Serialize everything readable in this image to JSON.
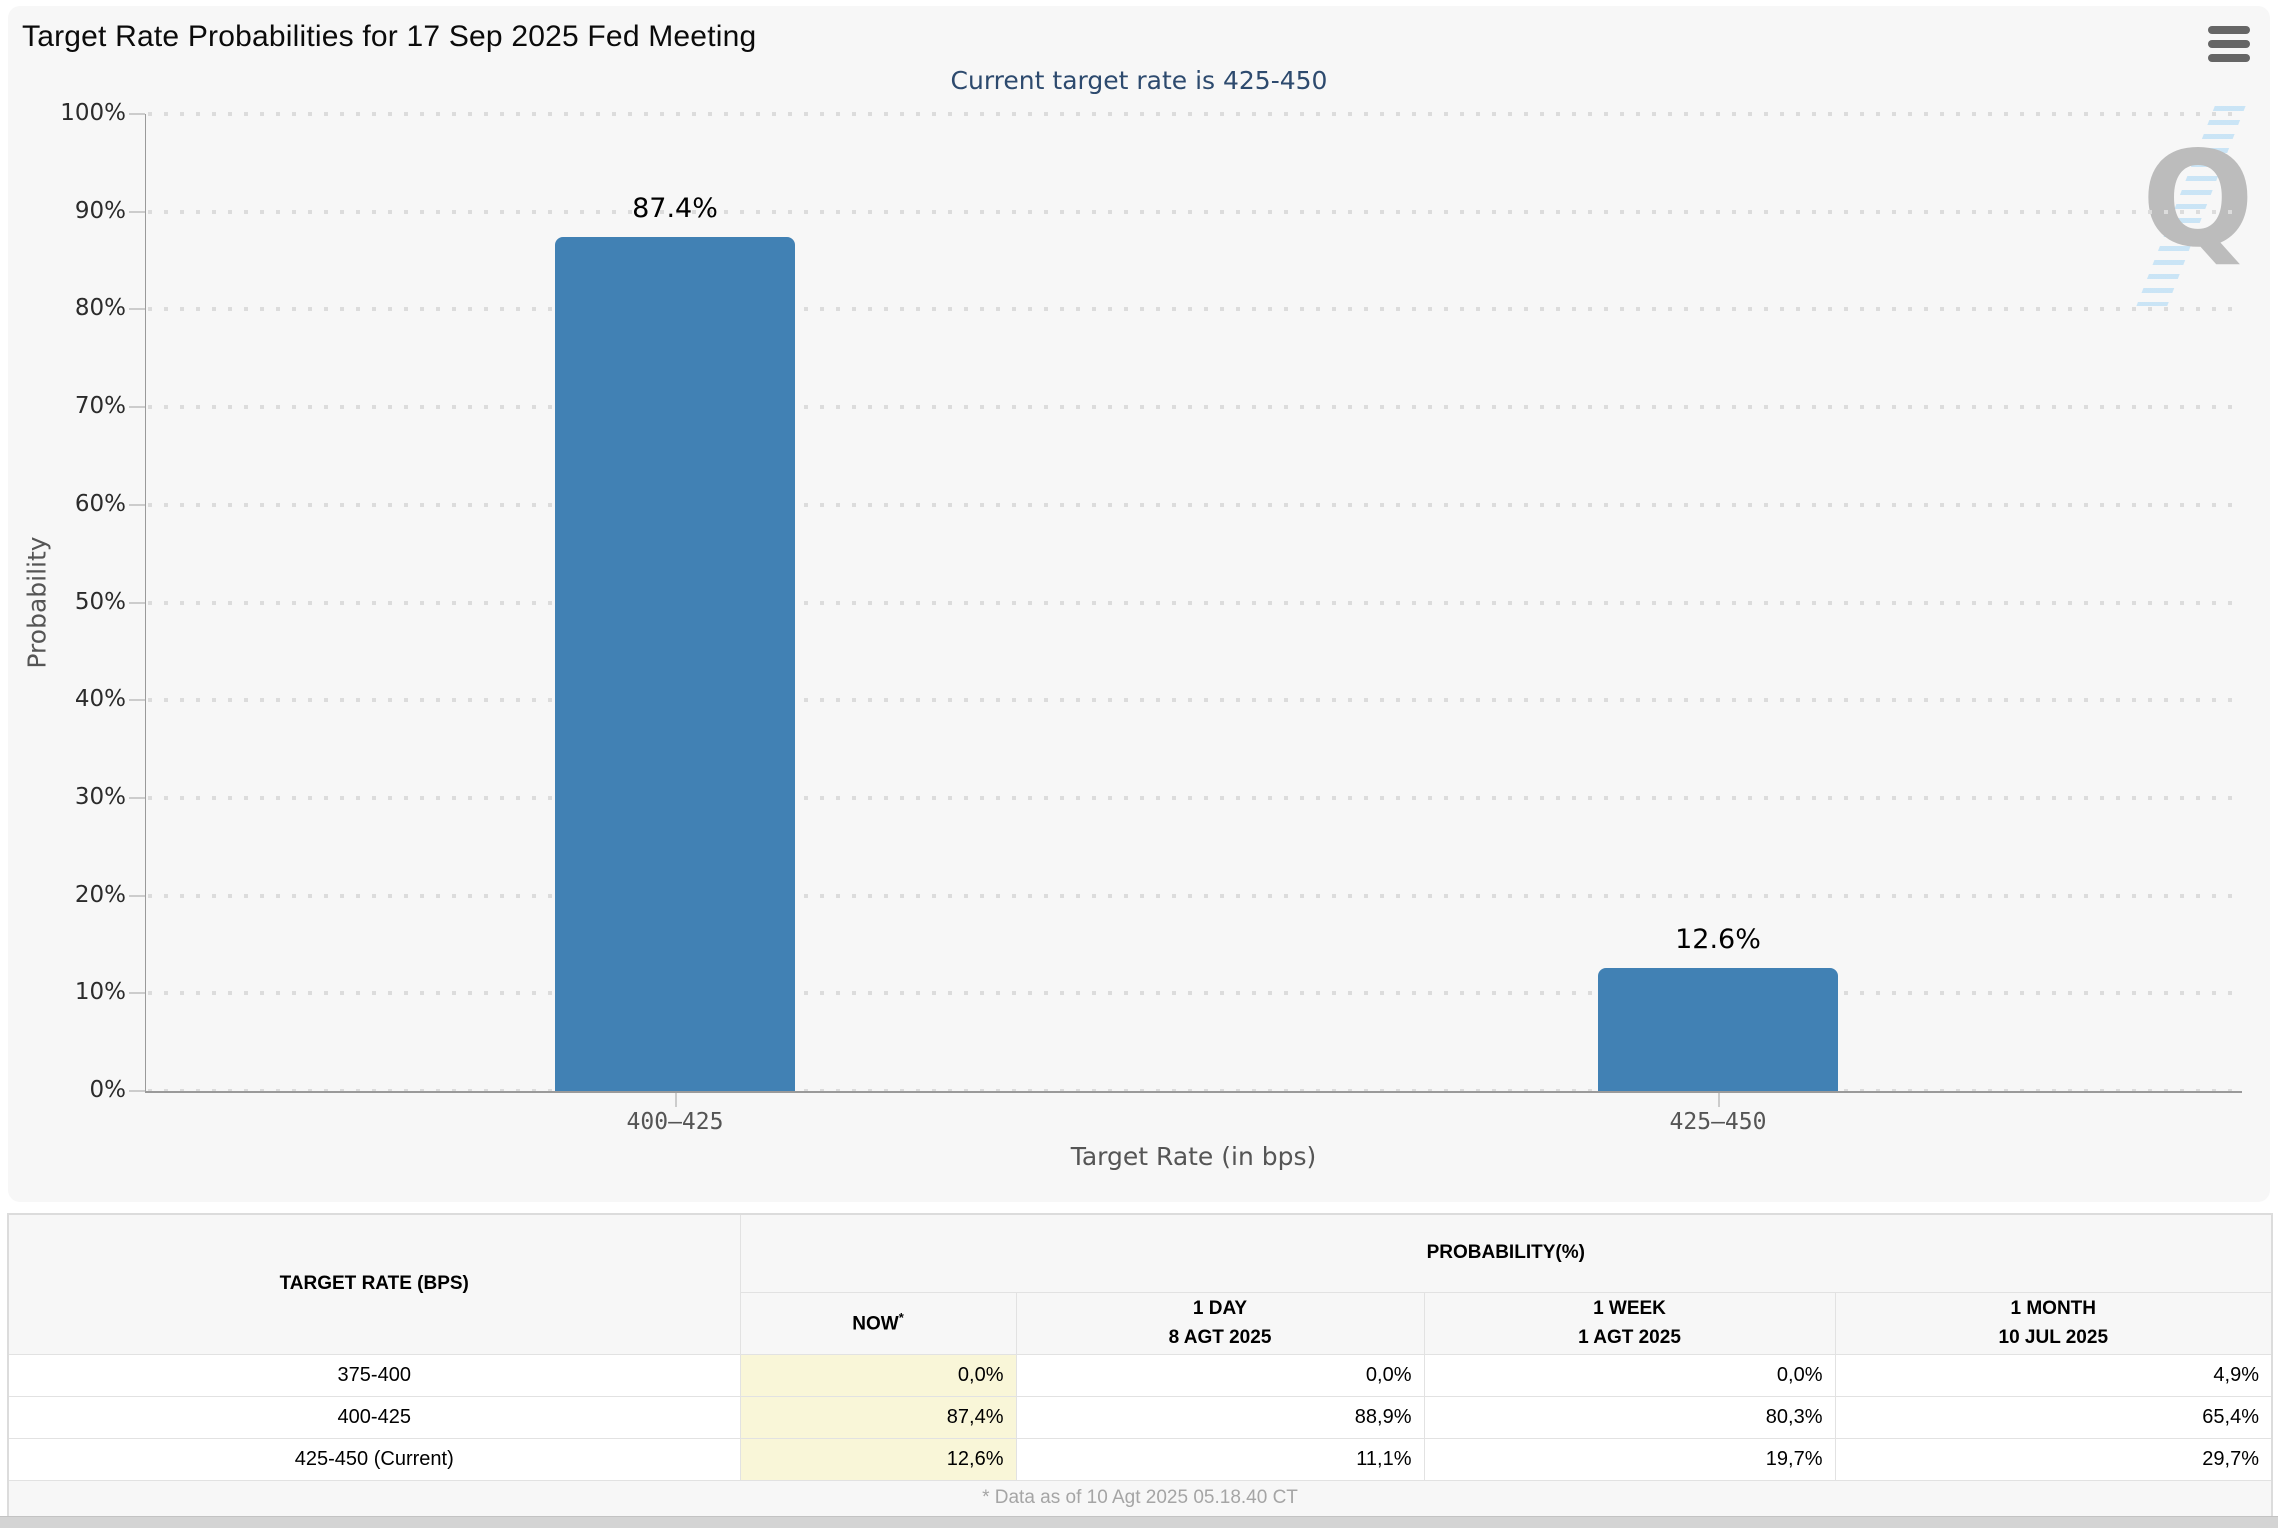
{
  "header": {
    "title": "Target Rate Probabilities for 17 Sep 2025 Fed Meeting"
  },
  "chart": {
    "subtitle": "Current target rate is 425-450",
    "y_axis_title": "Probability",
    "x_axis_title": "Target Rate (in bps)",
    "watermark_letter": "Q",
    "bar_color": "#4181b4"
  },
  "chart_data": {
    "type": "bar",
    "title": "Target Rate Probabilities for 17 Sep 2025 Fed Meeting",
    "subtitle": "Current target rate is 425-450",
    "categories": [
      "400–425",
      "425–450"
    ],
    "values": [
      87.4,
      12.6
    ],
    "value_labels": [
      "87.4%",
      "12.6%"
    ],
    "xlabel": "Target Rate (in bps)",
    "ylabel": "Probability",
    "ylim": [
      0,
      100
    ],
    "ytick_step": 10,
    "ytick_suffix": "%",
    "grid": "dotted-horizontal",
    "legend": "none",
    "bar_color": "#4181b4"
  },
  "table": {
    "col_rate_header": "TARGET RATE (BPS)",
    "group_header": "PROBABILITY(%)",
    "sub_headers": [
      {
        "line1": "NOW",
        "sup": "*",
        "line2": ""
      },
      {
        "line1": "1 DAY",
        "sup": "",
        "line2": "8 AGT 2025"
      },
      {
        "line1": "1 WEEK",
        "sup": "",
        "line2": "1 AGT 2025"
      },
      {
        "line1": "1 MONTH",
        "sup": "",
        "line2": "10 JUL 2025"
      }
    ],
    "rows": [
      {
        "rate": "375-400",
        "values": [
          "0,0%",
          "0,0%",
          "0,0%",
          "4,9%"
        ]
      },
      {
        "rate": "400-425",
        "values": [
          "87,4%",
          "88,9%",
          "80,3%",
          "65,4%"
        ]
      },
      {
        "rate": "425-450 (Current)",
        "values": [
          "12,6%",
          "11,1%",
          "19,7%",
          "29,7%"
        ]
      }
    ],
    "footnote": "* Data as of 10 Agt 2025 05.18.40 CT",
    "now_column_color": "#f9f6d8"
  }
}
